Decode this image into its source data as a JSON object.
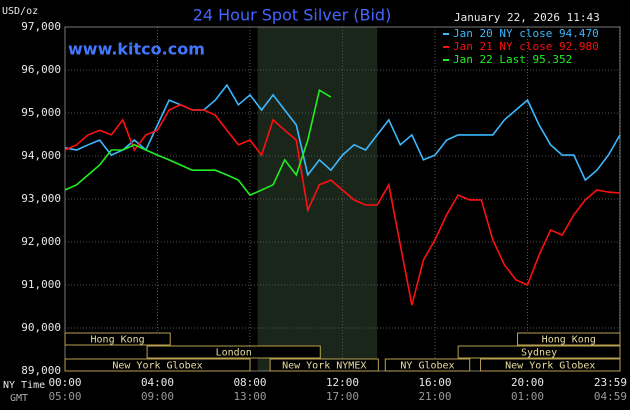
{
  "chart_data": {
    "type": "line",
    "title": "24 Hour Spot Silver (Bid)",
    "timestamp": "January 22, 2026 11:43",
    "y_unit": "USD/oz",
    "site": "www.kitco.com",
    "x_axis_label": "NY Time",
    "x2_axis_label": "GMT",
    "xlim": [
      0,
      24
    ],
    "xticks": [
      {
        "value": 0,
        "label": "00:00"
      },
      {
        "value": 4,
        "label": "04:00"
      },
      {
        "value": 8,
        "label": "08:00"
      },
      {
        "value": 12,
        "label": "12:00"
      },
      {
        "value": 16,
        "label": "16:00"
      },
      {
        "value": 20,
        "label": "20:00"
      },
      {
        "value": 23.98,
        "label": "23:59"
      }
    ],
    "x2_tick_labels": [
      "05:00",
      "09:00",
      "13:00",
      "17:00",
      "21:00",
      "01:00",
      "04:59"
    ],
    "ylim": [
      89000,
      97000
    ],
    "yticks": [
      {
        "value": 89000,
        "label": "89,000"
      },
      {
        "value": 90000,
        "label": "90,000"
      },
      {
        "value": 91000,
        "label": "91,000"
      },
      {
        "value": 92000,
        "label": "92,000"
      },
      {
        "value": 93000,
        "label": "93,000"
      },
      {
        "value": 94000,
        "label": "94,000"
      },
      {
        "value": 95000,
        "label": "95,000"
      },
      {
        "value": 96000,
        "label": "96,000"
      },
      {
        "value": 97000,
        "label": "97,000"
      }
    ],
    "grid": true,
    "highlight_x": [
      8.33,
      13.5
    ],
    "highlight_color": "#1b261b",
    "x": [
      0,
      0.5,
      1,
      1.5,
      2,
      2.5,
      3,
      3.5,
      4,
      4.5,
      5,
      5.5,
      6,
      6.5,
      7,
      7.5,
      8,
      8.5,
      9,
      9.5,
      10,
      10.5,
      11,
      11.5,
      12,
      12.5,
      13,
      13.5,
      14,
      14.5,
      15,
      15.5,
      16,
      16.5,
      17,
      17.5,
      18,
      18.5,
      19,
      19.5,
      20,
      20.5,
      21,
      21.5,
      22,
      22.5,
      23,
      23.5,
      24
    ],
    "series": [
      {
        "name": "Jan 20 NY close 94.470",
        "color": "#3cb8ff",
        "values": [
          94190,
          94140,
          94260,
          94370,
          94020,
          94140,
          94370,
          94140,
          94720,
          95300,
          95190,
          95070,
          95070,
          95300,
          95650,
          95190,
          95420,
          95070,
          95420,
          95070,
          94720,
          93560,
          93910,
          93670,
          94020,
          94260,
          94140,
          94490,
          94840,
          94260,
          94490,
          93910,
          94020,
          94370,
          94490,
          94490,
          94490,
          94490,
          94840,
          95070,
          95300,
          94720,
          94260,
          94020,
          94020,
          93440,
          93670,
          94020,
          94490
        ]
      },
      {
        "name": "Jan 21 NY close 92.980",
        "color": "#ff1010",
        "values": [
          94140,
          94260,
          94490,
          94600,
          94490,
          94840,
          94140,
          94490,
          94600,
          95070,
          95190,
          95070,
          95070,
          94950,
          94600,
          94260,
          94370,
          94020,
          94840,
          94600,
          94370,
          92740,
          93330,
          93440,
          93210,
          92980,
          92860,
          92860,
          93330,
          91930,
          90530,
          91580,
          92050,
          92630,
          93090,
          92980,
          92980,
          92050,
          91470,
          91120,
          91000,
          91700,
          92280,
          92160,
          92630,
          92980,
          93210,
          93160,
          93140
        ]
      },
      {
        "name": "Jan 22 Last 95.352",
        "color": "#22ee22",
        "values": [
          93210,
          93330,
          93560,
          93790,
          94140,
          94140,
          94260,
          94140,
          94020,
          93910,
          93790,
          93670,
          93670,
          93670,
          93560,
          93440,
          93090,
          93210,
          93330,
          93910,
          93560,
          94370,
          95530,
          95370,
          null,
          null,
          null,
          null,
          null,
          null,
          null,
          null,
          null,
          null,
          null,
          null,
          null,
          null,
          null,
          null,
          null,
          null,
          null,
          null,
          null,
          null,
          null,
          null,
          null
        ]
      }
    ],
    "session_color": "#b8a050",
    "session_rows": [
      [
        {
          "name": "Hong Kong",
          "start": 0,
          "end": 4.55
        },
        {
          "name": "Hong Kong",
          "start": 19.57,
          "end": 24
        }
      ],
      [
        {
          "name": "London",
          "start": 3.55,
          "end": 11.04
        },
        {
          "name": "Sydney",
          "start": 17.0,
          "end": 24
        }
      ],
      [
        {
          "name": "New York Globex",
          "start": 0,
          "end": 8.0
        },
        {
          "name": "New York NYMEX",
          "start": 8.87,
          "end": 13.55
        },
        {
          "name": "NY Globex",
          "start": 13.85,
          "end": 17.5
        },
        {
          "name": "New York Globex",
          "start": 17.97,
          "end": 24
        }
      ]
    ]
  }
}
